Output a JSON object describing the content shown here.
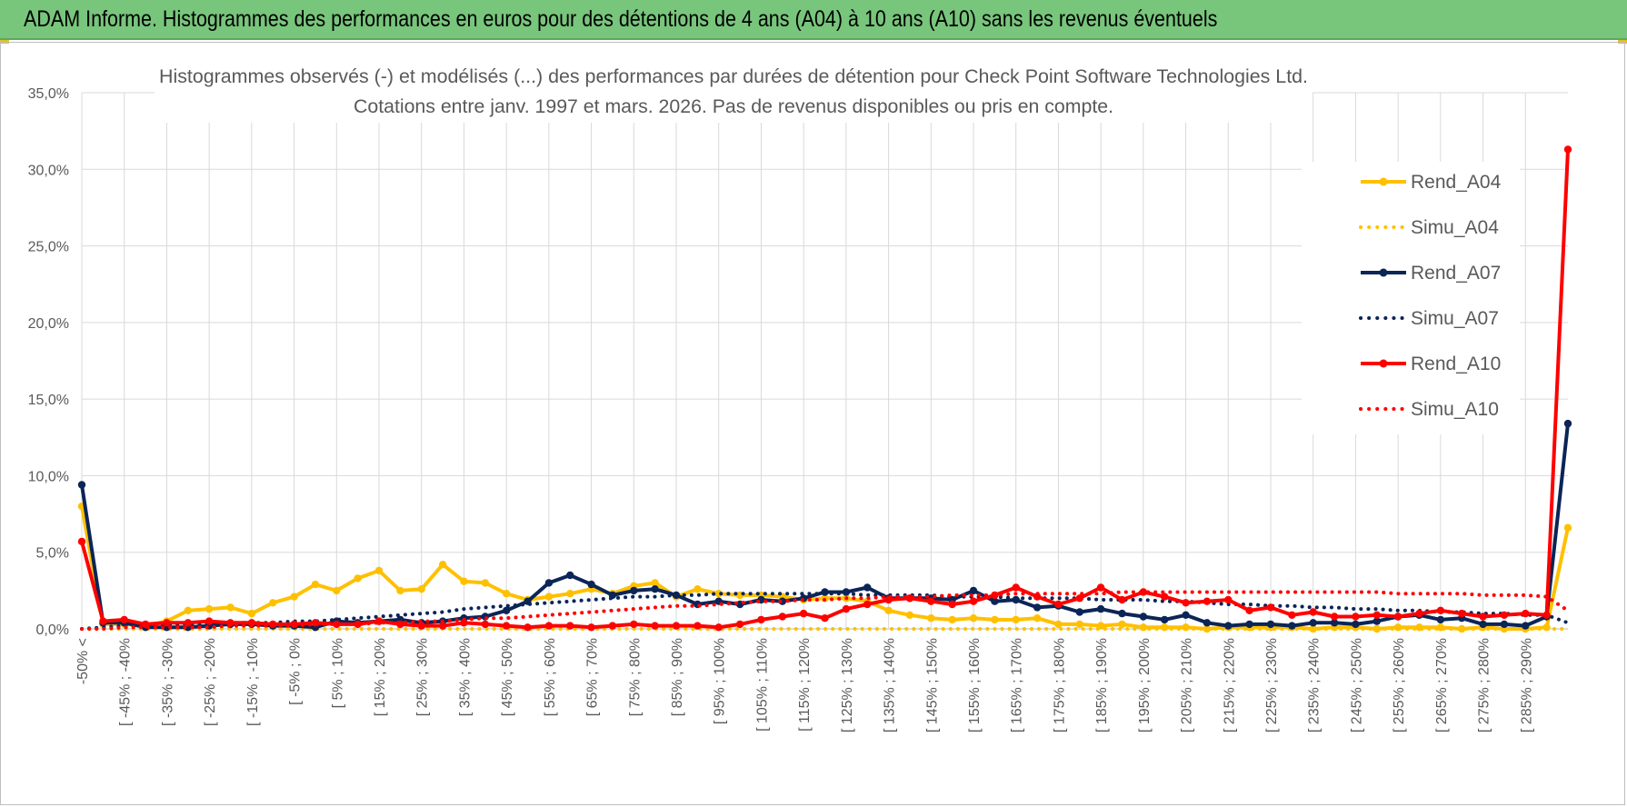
{
  "header": {
    "title": "ADAM Informe. Histogrammes des performances en euros pour des détentions de 4 ans (A04) à 10 ans (A10) sans les revenus éventuels"
  },
  "chart_data": {
    "type": "line",
    "title_lines": [
      "Histogrammes observés (-) et modélisés (...) des performances par durées de détention pour Check Point Software Technologies Ltd.",
      "Cotations entre janv. 1997 et mars. 2026.  Pas de revenus disponibles ou pris en compte."
    ],
    "ylim": [
      0,
      35
    ],
    "yticks": [
      0,
      5,
      10,
      15,
      20,
      25,
      30,
      35
    ],
    "ytick_labels": [
      "0,0%",
      "5,0%",
      "10,0%",
      "15,0%",
      "20,0%",
      "25,0%",
      "30,0%",
      "35,0%"
    ],
    "x_labels": [
      "-50% <",
      "[ -45% ; -40%",
      "[ -35% ; -30%",
      "[ -25% ; -20%",
      "[ -15% ; -10%",
      "[ -5% ; 0%",
      "[ 5% ; 10%",
      "[ 15% ; 20%",
      "[ 25% ; 30%",
      "[ 35% ; 40%",
      "[ 45% ; 50%",
      "[ 55% ; 60%",
      "[ 65% ; 70%",
      "[ 75% ; 80%",
      "[ 85% ; 90%",
      "[ 95% ; 100%",
      "[ 105% ; 110%",
      "[ 115% ; 120%",
      "[ 125% ; 130%",
      "[ 135% ; 140%",
      "[ 145% ; 150%",
      "[ 155% ; 160%",
      "[ 165% ; 170%",
      "[ 175% ; 180%",
      "[ 185% ; 190%",
      "[ 195% ; 200%",
      "[ 205% ; 210%",
      "[ 215% ; 220%",
      "[ 225% ; 230%",
      "[ 235% ; 240%",
      "[ 245% ; 250%",
      "[ 255% ; 260%",
      "[ 265% ; 270%",
      "[ 275% ; 280%",
      "[ 285% ; 290%"
    ],
    "n_points": 71,
    "series": [
      {
        "name": "Rend_A04",
        "style": "solid",
        "color": "#ffc000",
        "values": [
          8.0,
          0.3,
          0.3,
          0.2,
          0.5,
          1.2,
          1.3,
          1.4,
          1.0,
          1.7,
          2.1,
          2.9,
          2.5,
          3.3,
          3.8,
          2.5,
          2.6,
          4.2,
          3.1,
          3.0,
          2.3,
          1.9,
          2.1,
          2.3,
          2.6,
          2.3,
          2.8,
          3.0,
          2.1,
          2.6,
          2.3,
          2.2,
          2.2,
          2.1,
          1.9,
          2.0,
          2.0,
          1.8,
          1.2,
          0.9,
          0.7,
          0.6,
          0.7,
          0.6,
          0.6,
          0.7,
          0.3,
          0.3,
          0.2,
          0.3,
          0.1,
          0.1,
          0.1,
          0.0,
          0.1,
          0.1,
          0.1,
          0.1,
          0.0,
          0.1,
          0.1,
          0.0,
          0.1,
          0.1,
          0.1,
          0.0,
          0.1,
          0.0,
          0.0,
          0.1,
          6.6
        ]
      },
      {
        "name": "Simu_A04",
        "style": "dotted",
        "color": "#ffc000",
        "values": [
          0,
          0,
          0,
          0,
          0,
          0,
          0,
          0,
          0,
          0,
          0,
          0,
          0,
          0,
          0,
          0,
          0,
          0,
          0,
          0,
          0,
          0,
          0,
          0,
          0,
          0,
          0,
          0,
          0,
          0,
          0,
          0,
          0,
          0,
          0,
          0,
          0,
          0,
          0,
          0,
          0,
          0,
          0,
          0,
          0,
          0,
          0,
          0,
          0,
          0,
          0,
          0,
          0,
          0,
          0,
          0,
          0,
          0,
          0,
          0,
          0,
          0,
          0,
          0,
          0,
          0,
          0,
          0,
          0,
          0,
          0
        ]
      },
      {
        "name": "Rend_A07",
        "style": "solid",
        "color": "#0b2557",
        "values": [
          9.4,
          0.4,
          0.4,
          0.1,
          0.1,
          0.1,
          0.2,
          0.3,
          0.3,
          0.2,
          0.2,
          0.1,
          0.5,
          0.4,
          0.5,
          0.6,
          0.4,
          0.5,
          0.7,
          0.8,
          1.2,
          1.8,
          3.0,
          3.5,
          2.9,
          2.2,
          2.5,
          2.6,
          2.2,
          1.6,
          1.8,
          1.6,
          1.9,
          1.8,
          2.0,
          2.4,
          2.4,
          2.7,
          2.0,
          2.0,
          2.0,
          1.9,
          2.5,
          1.8,
          1.9,
          1.4,
          1.5,
          1.1,
          1.3,
          1.0,
          0.8,
          0.6,
          0.9,
          0.4,
          0.2,
          0.3,
          0.3,
          0.2,
          0.4,
          0.4,
          0.3,
          0.5,
          0.8,
          0.9,
          0.6,
          0.7,
          0.3,
          0.3,
          0.2,
          0.8,
          13.4
        ]
      },
      {
        "name": "Simu_A07",
        "style": "dotted",
        "color": "#0b2557",
        "values": [
          0.0,
          0.1,
          0.2,
          0.2,
          0.3,
          0.3,
          0.3,
          0.4,
          0.4,
          0.4,
          0.5,
          0.5,
          0.6,
          0.7,
          0.8,
          0.9,
          1.0,
          1.1,
          1.3,
          1.4,
          1.5,
          1.6,
          1.7,
          1.8,
          1.9,
          2.0,
          2.1,
          2.1,
          2.2,
          2.2,
          2.3,
          2.3,
          2.3,
          2.3,
          2.3,
          2.3,
          2.3,
          2.2,
          2.2,
          2.2,
          2.2,
          2.1,
          2.1,
          2.1,
          2.0,
          2.0,
          2.0,
          2.0,
          1.9,
          1.9,
          1.9,
          1.8,
          1.8,
          1.7,
          1.6,
          1.6,
          1.5,
          1.5,
          1.4,
          1.4,
          1.3,
          1.3,
          1.2,
          1.2,
          1.1,
          1.1,
          1.0,
          1.0,
          0.9,
          0.9,
          0.4
        ]
      },
      {
        "name": "Rend_A10",
        "style": "solid",
        "color": "#ff0000",
        "values": [
          5.7,
          0.5,
          0.6,
          0.3,
          0.4,
          0.4,
          0.5,
          0.4,
          0.4,
          0.3,
          0.3,
          0.4,
          0.3,
          0.3,
          0.5,
          0.3,
          0.2,
          0.2,
          0.4,
          0.3,
          0.2,
          0.1,
          0.2,
          0.2,
          0.1,
          0.2,
          0.3,
          0.2,
          0.2,
          0.2,
          0.1,
          0.3,
          0.6,
          0.8,
          1.0,
          0.7,
          1.3,
          1.6,
          1.9,
          2.0,
          1.8,
          1.6,
          1.8,
          2.2,
          2.7,
          2.1,
          1.6,
          2.0,
          2.7,
          1.9,
          2.4,
          2.1,
          1.7,
          1.8,
          1.9,
          1.2,
          1.4,
          0.9,
          1.1,
          0.8,
          0.8,
          0.9,
          0.8,
          1.0,
          1.2,
          1.0,
          0.8,
          0.9,
          1.0,
          0.9,
          31.3
        ]
      },
      {
        "name": "Simu_A10",
        "style": "dotted",
        "color": "#ff0000",
        "values": [
          0.0,
          0.0,
          0.1,
          0.1,
          0.1,
          0.1,
          0.1,
          0.2,
          0.2,
          0.2,
          0.2,
          0.3,
          0.3,
          0.3,
          0.4,
          0.4,
          0.5,
          0.5,
          0.6,
          0.7,
          0.7,
          0.8,
          0.9,
          1.0,
          1.1,
          1.2,
          1.3,
          1.4,
          1.5,
          1.5,
          1.6,
          1.7,
          1.8,
          1.8,
          1.9,
          1.9,
          2.0,
          2.0,
          2.1,
          2.1,
          2.1,
          2.2,
          2.2,
          2.2,
          2.3,
          2.3,
          2.3,
          2.3,
          2.3,
          2.4,
          2.4,
          2.4,
          2.4,
          2.4,
          2.4,
          2.4,
          2.4,
          2.4,
          2.4,
          2.4,
          2.4,
          2.4,
          2.3,
          2.3,
          2.3,
          2.3,
          2.2,
          2.2,
          2.2,
          2.1,
          1.2
        ]
      }
    ],
    "legend_position": "right",
    "grid": true
  }
}
